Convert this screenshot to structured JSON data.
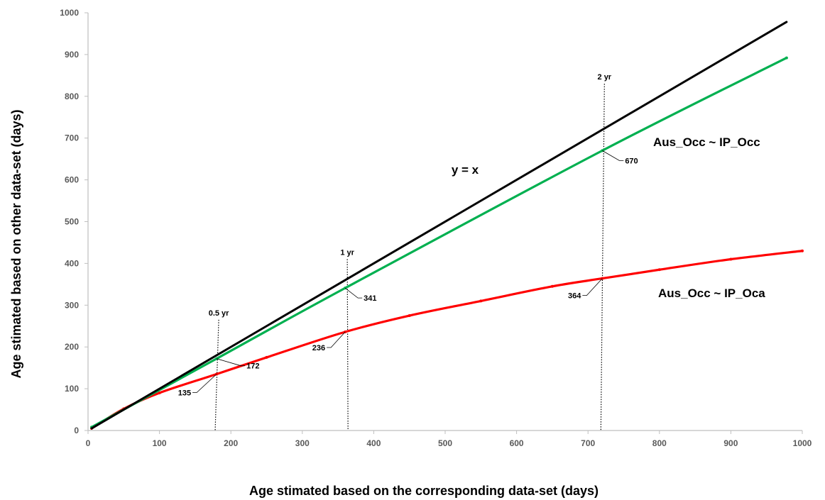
{
  "chart_data": {
    "type": "line",
    "xlabel": "Age stimated based on the corresponding data-set (days)",
    "ylabel": "Age stimated based on other data-set (days)",
    "xlim": [
      0,
      1000
    ],
    "ylim": [
      0,
      1000
    ],
    "xticks": [
      0,
      100,
      200,
      300,
      400,
      500,
      600,
      700,
      800,
      900,
      1000
    ],
    "yticks": [
      0,
      100,
      200,
      300,
      400,
      500,
      600,
      700,
      800,
      900,
      1000
    ],
    "grid": false,
    "series": [
      {
        "name": "y = x",
        "color": "#000000",
        "x": [
          5,
          978
        ],
        "y": [
          5,
          978
        ]
      },
      {
        "name": "Aus_Occ ~ IP_Occ",
        "color": "#00b050",
        "x": [
          5,
          180,
          360,
          720,
          978
        ],
        "y": [
          8,
          172,
          341,
          670,
          892
        ]
      },
      {
        "name": "Aus_Occ ~ IP_Oca",
        "color": "#ff0000",
        "x": [
          5,
          50,
          100,
          180,
          250,
          360,
          450,
          550,
          650,
          720,
          800,
          900,
          1000
        ],
        "y": [
          5,
          52,
          90,
          135,
          175,
          236,
          275,
          310,
          345,
          364,
          385,
          410,
          430
        ]
      }
    ],
    "annotations": {
      "reference_lines": [
        {
          "label": "0.5 yr",
          "x": 180,
          "y_top": 265
        },
        {
          "label": "1 yr",
          "x": 360,
          "y_top": 410
        },
        {
          "label": "2 yr",
          "x": 720,
          "y_top": 830
        }
      ],
      "point_labels": [
        {
          "text": "172",
          "series": "Aus_Occ ~ IP_Occ",
          "x": 180,
          "y": 172
        },
        {
          "text": "341",
          "series": "Aus_Occ ~ IP_Occ",
          "x": 360,
          "y": 341
        },
        {
          "text": "670",
          "series": "Aus_Occ ~ IP_Occ",
          "x": 720,
          "y": 670
        },
        {
          "text": "135",
          "series": "Aus_Occ ~ IP_Oca",
          "x": 180,
          "y": 135
        },
        {
          "text": "236",
          "series": "Aus_Occ ~ IP_Oca",
          "x": 360,
          "y": 236
        },
        {
          "text": "364",
          "series": "Aus_Occ ~ IP_Oca",
          "x": 720,
          "y": 364
        }
      ]
    }
  }
}
